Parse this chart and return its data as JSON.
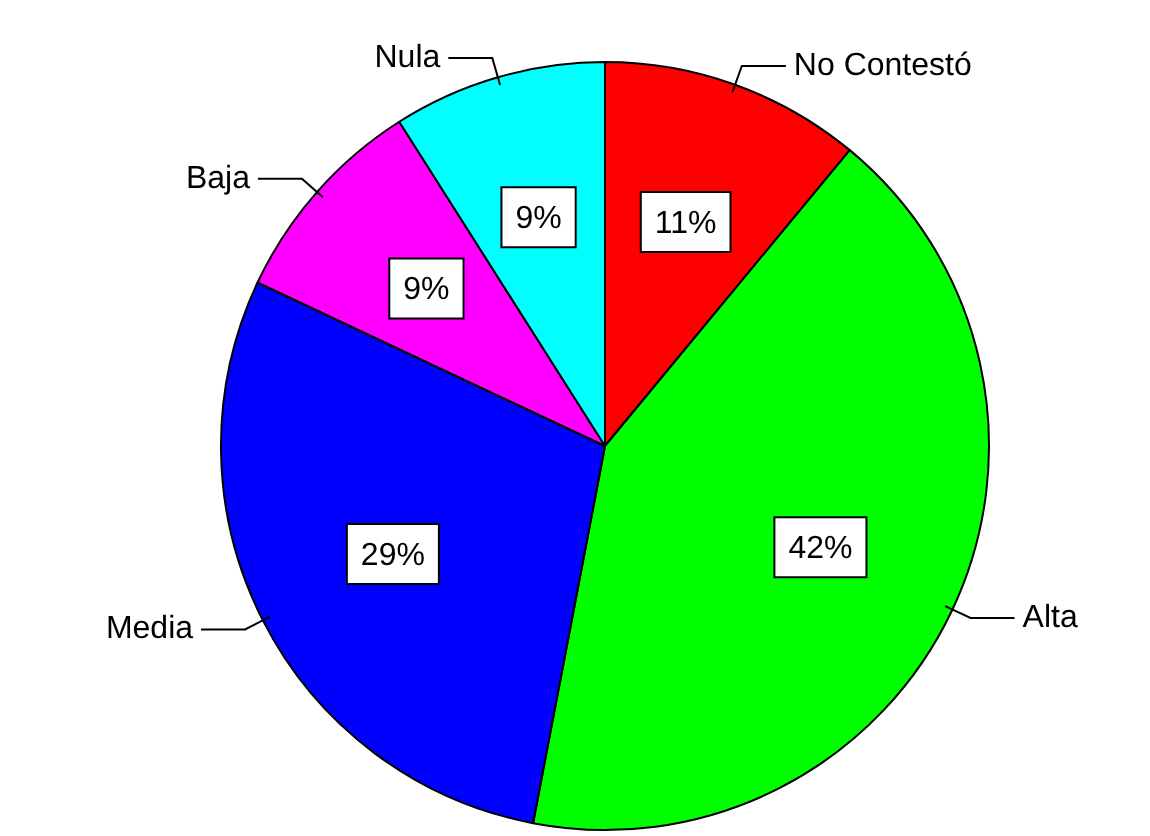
{
  "chart_data": {
    "type": "pie",
    "categories": [
      "No Contestó",
      "Alta",
      "Media",
      "Baja",
      "Nula"
    ],
    "values": [
      11,
      42,
      29,
      9,
      9
    ],
    "colors": [
      "#ff0000",
      "#00ff00",
      "#0000ff",
      "#ff00ff",
      "#00ffff"
    ],
    "value_labels": [
      "11%",
      "42%",
      "29%",
      "9%",
      "9%"
    ],
    "legend": false
  }
}
